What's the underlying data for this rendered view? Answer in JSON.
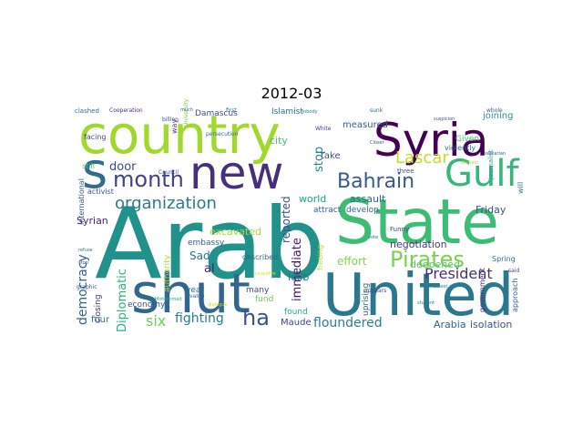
{
  "title": "2012-03",
  "words": [
    {
      "text": "Arab",
      "color": "#21918c"
    },
    {
      "text": "State",
      "color": "#3dbc74"
    },
    {
      "text": "United",
      "color": "#2a788e"
    },
    {
      "text": "country",
      "color": "#a2d82c"
    },
    {
      "text": "shut",
      "color": "#31668e"
    },
    {
      "text": "Syria",
      "color": "#440154"
    },
    {
      "text": "new",
      "color": "#472f7d"
    },
    {
      "text": "Gulf",
      "color": "#35b779"
    },
    {
      "text": "s",
      "color": "#2f6c8e"
    },
    {
      "text": "Bahrain",
      "color": "#38598c"
    },
    {
      "text": "month",
      "color": "#414487"
    },
    {
      "text": "Pirates",
      "color": "#7ad151"
    },
    {
      "text": "organization",
      "color": "#2a7b8e"
    },
    {
      "text": "ha",
      "color": "#3b528b"
    },
    {
      "text": "Lascar",
      "color": "#c2df23"
    },
    {
      "text": "President",
      "color": "#46317e"
    },
    {
      "text": "six",
      "color": "#6ece58"
    },
    {
      "text": "democracy",
      "color": "#33628d"
    },
    {
      "text": "fighting",
      "color": "#287c8e"
    },
    {
      "text": "door",
      "color": "#3e4989"
    },
    {
      "text": "floundered",
      "color": "#27808e"
    },
    {
      "text": "Diplomatic",
      "color": "#2db27d"
    },
    {
      "text": "stop",
      "color": "#25848e"
    },
    {
      "text": "effort",
      "color": "#85d54a"
    },
    {
      "text": "immediate",
      "color": "#48186a"
    },
    {
      "text": "reported",
      "color": "#3c4f8a"
    },
    {
      "text": "negotiation",
      "color": "#443a83"
    },
    {
      "text": "assault",
      "color": "#30698e"
    },
    {
      "text": "isolation",
      "color": "#39568c"
    },
    {
      "text": "Arabia",
      "color": "#34618d"
    },
    {
      "text": "Sad",
      "color": "#2c728e"
    },
    {
      "text": "excavated",
      "color": "#a0da39"
    },
    {
      "text": "Syrian",
      "color": "#482677"
    },
    {
      "text": "Maude",
      "color": "#3f4788"
    },
    {
      "text": "world",
      "color": "#1fa088"
    },
    {
      "text": "deepened",
      "color": "#5ec962"
    },
    {
      "text": "al",
      "color": "#481f70"
    },
    {
      "text": "Idlib",
      "color": "#2e6e8e"
    },
    {
      "text": "Friday",
      "color": "#3a538b"
    },
    {
      "text": "joining",
      "color": "#1f988b"
    },
    {
      "text": "measured",
      "color": "#365c8d"
    },
    {
      "text": "Islamist",
      "color": "#2e6f8e"
    },
    {
      "text": "Damascus",
      "color": "#3e4a89"
    },
    {
      "text": "city",
      "color": "#4cc26c"
    },
    {
      "text": "take",
      "color": "#3b518b"
    },
    {
      "text": "develop",
      "color": "#31678e"
    },
    {
      "text": "attract",
      "color": "#365d8d"
    },
    {
      "text": "closing",
      "color": "#46337f"
    },
    {
      "text": "four",
      "color": "#2d708e"
    },
    {
      "text": "fund",
      "color": "#65cb5e"
    },
    {
      "text": "found",
      "color": "#27ad81"
    },
    {
      "text": "embassy",
      "color": "#33638d"
    },
    {
      "text": "economy",
      "color": "#39568c"
    },
    {
      "text": "authority",
      "color": "#a5db36"
    },
    {
      "text": "year",
      "color": "#2c718e"
    },
    {
      "text": "many",
      "color": "#3f4889"
    },
    {
      "text": "described",
      "color": "#34608d"
    },
    {
      "text": "uprising",
      "color": "#31678e"
    },
    {
      "text": "government",
      "color": "#462f7e"
    },
    {
      "text": "approach",
      "color": "#33628d"
    },
    {
      "text": "Spring",
      "color": "#2d708e"
    },
    {
      "text": "violently",
      "color": "#2e6e8e"
    },
    {
      "text": "international",
      "color": "#3b518b"
    },
    {
      "text": "activist",
      "color": "#38588c"
    },
    {
      "text": "still",
      "color": "#52c569"
    },
    {
      "text": "facing",
      "color": "#3f4788"
    },
    {
      "text": "way",
      "color": "#46337f"
    },
    {
      "text": "Given",
      "color": "#48c16e"
    },
    {
      "text": "will",
      "color": "#2a768e"
    },
    {
      "text": "journalist",
      "color": "#20a486"
    },
    {
      "text": "three",
      "color": "#3c4f8a"
    },
    {
      "text": "freeing",
      "color": "#b5de2b"
    },
    {
      "text": "Funny",
      "color": "#414487"
    },
    {
      "text": "clashed",
      "color": "#2f6b8e"
    },
    {
      "text": "Cooperation",
      "color": "#46307e"
    },
    {
      "text": "billion",
      "color": "#3b528b"
    },
    {
      "text": "first",
      "color": "#2c728e"
    },
    {
      "text": "whole",
      "color": "#38598c"
    },
    {
      "text": "White",
      "color": "#443983"
    },
    {
      "text": "sunk",
      "color": "#31688e"
    },
    {
      "text": "persecution",
      "color": "#2f6b8e"
    },
    {
      "text": "University",
      "color": "#73d056"
    },
    {
      "text": "Council",
      "color": "#34618d"
    },
    {
      "text": "value",
      "color": "#35608d"
    },
    {
      "text": "appears",
      "color": "#404588"
    },
    {
      "text": "graphic",
      "color": "#3b528b"
    },
    {
      "text": "said",
      "color": "#3f4788"
    },
    {
      "text": "student",
      "color": "#2a778e"
    },
    {
      "text": "Closer",
      "color": "#39568c"
    },
    {
      "text": "suspicion",
      "color": "#3a548c"
    },
    {
      "text": "division",
      "color": "#9fda3a"
    },
    {
      "text": "much",
      "color": "#2e6d8e"
    },
    {
      "text": "nobody",
      "color": "#26828e"
    },
    {
      "text": "Mohammed",
      "color": "#22a785"
    },
    {
      "text": "dialogue",
      "color": "#c8e020"
    },
    {
      "text": "ceasefire",
      "color": "#d8e219"
    },
    {
      "text": "sectarian",
      "color": "#2f6c8e"
    },
    {
      "text": "Sweet",
      "color": "#25838e"
    },
    {
      "text": "vote",
      "color": "#2e6e8e"
    },
    {
      "text": "stop",
      "color": "#3e4989"
    },
    {
      "text": "refuse",
      "color": "#2b748e"
    }
  ]
}
